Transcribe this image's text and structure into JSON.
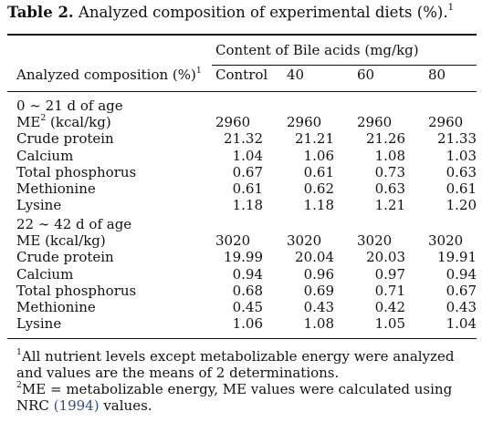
{
  "title": {
    "label": "Table 2.",
    "text": "Analyzed composition of experimental diets (%).",
    "footnote_mark": "1"
  },
  "header": {
    "group_label": "Content of Bile acids (mg/kg)",
    "row_label": "Analyzed composition (%)",
    "row_label_mark": "1",
    "columns": [
      "Control",
      "40",
      "60",
      "80"
    ]
  },
  "sections": [
    {
      "heading": "0 ∼ 21 d of age",
      "rows": [
        {
          "label": "ME",
          "mark": "2",
          "suffix": " (kcal/kg)",
          "values": [
            "2960",
            "2960",
            "2960",
            "2960"
          ],
          "align": "left"
        },
        {
          "label": "Crude protein",
          "values": [
            "21.32",
            "21.21",
            "21.26",
            "21.33"
          ],
          "align": "right"
        },
        {
          "label": "Calcium",
          "values": [
            "1.04",
            "1.06",
            "1.08",
            "1.03"
          ],
          "align": "right"
        },
        {
          "label": "Total phosphorus",
          "values": [
            "0.67",
            "0.61",
            "0.73",
            "0.63"
          ],
          "align": "right"
        },
        {
          "label": "Methionine",
          "values": [
            "0.61",
            "0.62",
            "0.63",
            "0.61"
          ],
          "align": "right"
        },
        {
          "label": "Lysine",
          "values": [
            "1.18",
            "1.18",
            "1.21",
            "1.20"
          ],
          "align": "right"
        }
      ]
    },
    {
      "heading": "22 ∼ 42 d of age",
      "rows": [
        {
          "label": "ME (kcal/kg)",
          "values": [
            "3020",
            "3020",
            "3020",
            "3020"
          ],
          "align": "left"
        },
        {
          "label": "Crude protein",
          "values": [
            "19.99",
            "20.04",
            "20.03",
            "19.91"
          ],
          "align": "right"
        },
        {
          "label": "Calcium",
          "values": [
            "0.94",
            "0.96",
            "0.97",
            "0.94"
          ],
          "align": "right"
        },
        {
          "label": "Total phosphorus",
          "values": [
            "0.68",
            "0.69",
            "0.71",
            "0.67"
          ],
          "align": "right"
        },
        {
          "label": "Methionine",
          "values": [
            "0.45",
            "0.43",
            "0.42",
            "0.43"
          ],
          "align": "right"
        },
        {
          "label": "Lysine",
          "values": [
            "1.06",
            "1.08",
            "1.05",
            "1.04"
          ],
          "align": "right"
        }
      ]
    }
  ],
  "footnotes": [
    {
      "mark": "1",
      "text": "All nutrient levels except metabolizable energy were analyzed and values are the means of 2 determinations."
    },
    {
      "mark": "2",
      "text_before": "ME = metabolizable energy, ME values were calculated using NRC ",
      "citation": "(1994)",
      "text_after": " values."
    }
  ],
  "colors": {
    "text": "#111111",
    "citation": "#2b4f8c"
  }
}
